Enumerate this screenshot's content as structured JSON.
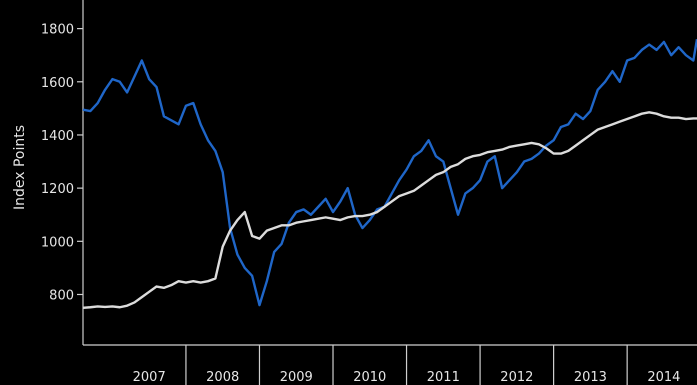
{
  "chart_data": {
    "type": "line",
    "title": "",
    "xlabel": "",
    "ylabel": "Index Points",
    "ylim": [
      610,
      1870
    ],
    "xlim": [
      2006.6,
      2014.95
    ],
    "yticks": [
      800,
      1000,
      1200,
      1400,
      1600,
      1800
    ],
    "xticks": [
      "2007",
      "2008",
      "2009",
      "2010",
      "2011",
      "2012",
      "2013",
      "2014"
    ],
    "grid": false,
    "legend": "none",
    "series": [
      {
        "color": "#1f66c8",
        "x": [
          2006.6,
          2006.7,
          2006.8,
          2006.9,
          2007.0,
          2007.1,
          2007.2,
          2007.3,
          2007.4,
          2007.5,
          2007.6,
          2007.7,
          2007.8,
          2007.9,
          2008.0,
          2008.1,
          2008.2,
          2008.3,
          2008.4,
          2008.5,
          2008.6,
          2008.7,
          2008.8,
          2008.9,
          2009.0,
          2009.1,
          2009.2,
          2009.3,
          2009.4,
          2009.5,
          2009.6,
          2009.7,
          2009.8,
          2009.9,
          2010.0,
          2010.1,
          2010.2,
          2010.3,
          2010.4,
          2010.5,
          2010.6,
          2010.7,
          2010.8,
          2010.9,
          2011.0,
          2011.1,
          2011.2,
          2011.3,
          2011.4,
          2011.5,
          2011.6,
          2011.7,
          2011.8,
          2011.9,
          2012.0,
          2012.1,
          2012.2,
          2012.3,
          2012.4,
          2012.5,
          2012.6,
          2012.7,
          2012.8,
          2012.9,
          2013.0,
          2013.1,
          2013.2,
          2013.3,
          2013.4,
          2013.5,
          2013.6,
          2013.7,
          2013.8,
          2013.9,
          2014.0,
          2014.1,
          2014.2,
          2014.3,
          2014.4,
          2014.5,
          2014.6,
          2014.7,
          2014.8,
          2014.9,
          2014.95
        ],
        "values": [
          1495,
          1490,
          1520,
          1570,
          1610,
          1600,
          1560,
          1620,
          1680,
          1610,
          1580,
          1470,
          1455,
          1440,
          1510,
          1520,
          1440,
          1380,
          1340,
          1260,
          1050,
          950,
          900,
          870,
          760,
          850,
          960,
          990,
          1070,
          1110,
          1120,
          1100,
          1130,
          1160,
          1110,
          1150,
          1200,
          1100,
          1050,
          1080,
          1120,
          1130,
          1180,
          1230,
          1270,
          1320,
          1340,
          1380,
          1320,
          1300,
          1200,
          1100,
          1180,
          1200,
          1230,
          1300,
          1320,
          1200,
          1230,
          1260,
          1300,
          1310,
          1330,
          1360,
          1380,
          1430,
          1440,
          1480,
          1460,
          1490,
          1570,
          1600,
          1640,
          1600,
          1680,
          1690,
          1720,
          1740,
          1720,
          1750,
          1700,
          1730,
          1700,
          1680,
          1760
        ]
      },
      {
        "color": "#dcdcdc",
        "x": [
          2006.6,
          2006.7,
          2006.8,
          2006.9,
          2007.0,
          2007.1,
          2007.2,
          2007.3,
          2007.4,
          2007.5,
          2007.6,
          2007.7,
          2007.8,
          2007.9,
          2008.0,
          2008.1,
          2008.2,
          2008.3,
          2008.4,
          2008.5,
          2008.6,
          2008.7,
          2008.8,
          2008.9,
          2009.0,
          2009.1,
          2009.2,
          2009.3,
          2009.4,
          2009.5,
          2009.6,
          2009.7,
          2009.8,
          2009.9,
          2010.0,
          2010.1,
          2010.2,
          2010.3,
          2010.4,
          2010.5,
          2010.6,
          2010.7,
          2010.8,
          2010.9,
          2011.0,
          2011.1,
          2011.2,
          2011.3,
          2011.4,
          2011.5,
          2011.6,
          2011.7,
          2011.8,
          2011.9,
          2012.0,
          2012.1,
          2012.2,
          2012.3,
          2012.4,
          2012.5,
          2012.6,
          2012.7,
          2012.8,
          2012.9,
          2013.0,
          2013.1,
          2013.2,
          2013.3,
          2013.4,
          2013.5,
          2013.6,
          2013.7,
          2013.8,
          2013.9,
          2014.0,
          2014.1,
          2014.2,
          2014.3,
          2014.4,
          2014.5,
          2014.6,
          2014.7,
          2014.8,
          2014.9,
          2014.95
        ],
        "values": [
          750,
          752,
          755,
          753,
          755,
          752,
          758,
          770,
          790,
          810,
          830,
          825,
          835,
          850,
          845,
          850,
          845,
          850,
          860,
          980,
          1040,
          1080,
          1110,
          1020,
          1010,
          1040,
          1050,
          1060,
          1060,
          1070,
          1075,
          1080,
          1085,
          1090,
          1085,
          1080,
          1090,
          1095,
          1095,
          1100,
          1110,
          1130,
          1150,
          1170,
          1180,
          1190,
          1210,
          1230,
          1250,
          1260,
          1280,
          1290,
          1310,
          1320,
          1325,
          1335,
          1340,
          1345,
          1355,
          1360,
          1365,
          1370,
          1365,
          1350,
          1330,
          1330,
          1340,
          1360,
          1380,
          1400,
          1420,
          1430,
          1440,
          1450,
          1460,
          1470,
          1480,
          1485,
          1480,
          1470,
          1465,
          1465,
          1460,
          1462,
          1462
        ]
      }
    ]
  }
}
